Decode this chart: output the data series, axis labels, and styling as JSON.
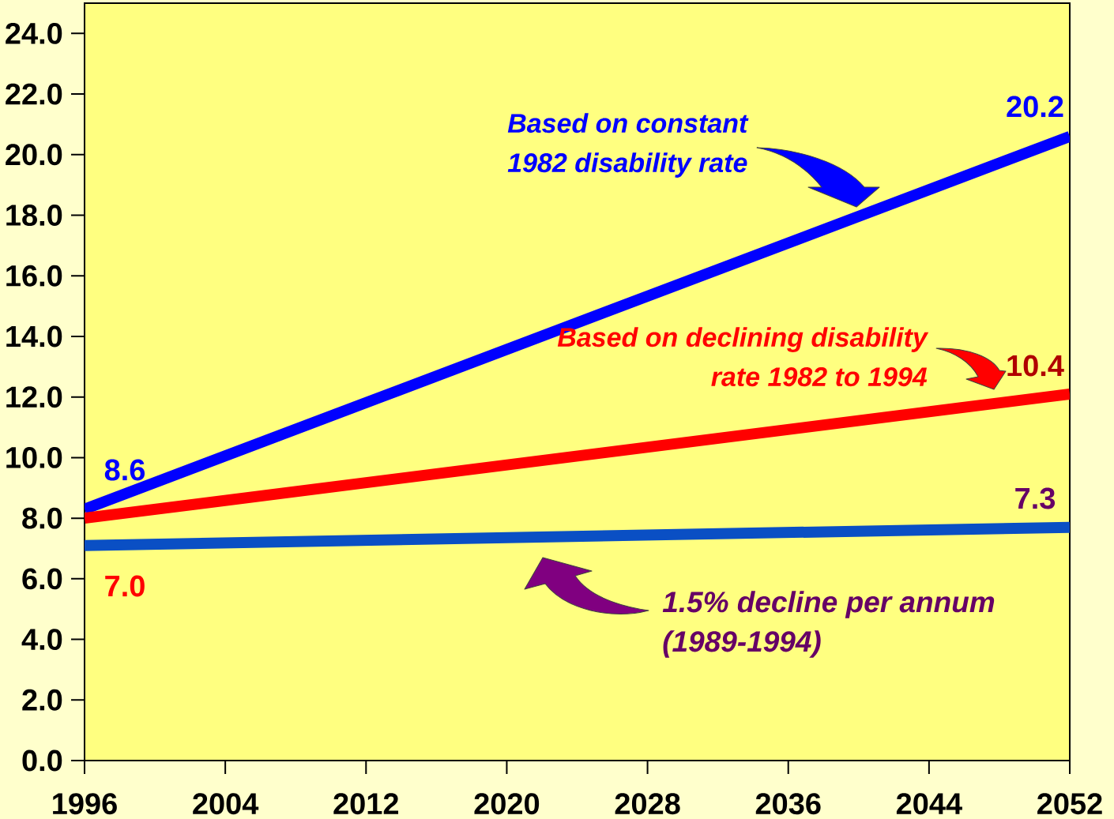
{
  "chart_data": {
    "type": "line",
    "x": [
      1996,
      2052
    ],
    "series": [
      {
        "name": "Based on constant 1982 disability rate",
        "color": "#0000ff",
        "values": [
          8.3,
          20.6
        ]
      },
      {
        "name": "Based on declining disability rate 1982 to 1994",
        "color": "#ff0000",
        "values": [
          8.0,
          12.1
        ]
      },
      {
        "name": "1.5% decline per annum (1989-1994)",
        "color": "#0a4fc4",
        "values": [
          7.1,
          7.7
        ]
      }
    ],
    "xlim": [
      1996,
      2052
    ],
    "ylim": [
      0,
      25
    ],
    "xticks": [
      1996,
      2004,
      2012,
      2020,
      2028,
      2036,
      2044,
      2052
    ],
    "yticks": [
      {
        "value": 0,
        "label": "0.0"
      },
      {
        "value": 2,
        "label": "2.0"
      },
      {
        "value": 4,
        "label": "4.0"
      },
      {
        "value": 6,
        "label": "6.0"
      },
      {
        "value": 8,
        "label": "8.0"
      },
      {
        "value": 10,
        "label": "10.0"
      },
      {
        "value": 12,
        "label": "12.0"
      },
      {
        "value": 14,
        "label": "14.0"
      },
      {
        "value": 16,
        "label": "16.0"
      },
      {
        "value": 18,
        "label": "18.0"
      },
      {
        "value": 20,
        "label": "20.0"
      },
      {
        "value": 22,
        "label": "22.0"
      },
      {
        "value": 24,
        "label": "24.0"
      }
    ],
    "annotations": [
      "8.6",
      "20.2",
      "10.4",
      "7.3",
      "7.0"
    ],
    "line_style": "solid"
  }
}
